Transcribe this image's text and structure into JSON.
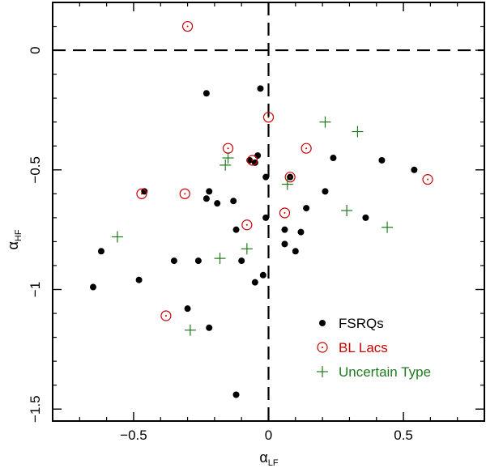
{
  "chart_data": {
    "type": "scatter",
    "title": "",
    "xlabel": {
      "main": "α",
      "sub": "LF"
    },
    "ylabel": {
      "main": "α",
      "sub": "HF"
    },
    "xlim": [
      -0.8,
      0.8
    ],
    "ylim": [
      -1.55,
      0.2
    ],
    "x_ticks": [
      -0.5,
      0,
      0.5
    ],
    "x_tick_labels": [
      "−0.5",
      "0",
      "0.5"
    ],
    "y_ticks": [
      -1.5,
      -1,
      -0.5,
      0
    ],
    "y_tick_labels": [
      "−1.5",
      "−1",
      "−0.5",
      "0"
    ],
    "reference_lines": {
      "x": 0,
      "y": 0,
      "style": "dashed"
    },
    "legend_position": "bottom-right",
    "colors": {
      "fsrq": "#000000",
      "bllac": "#cc0000",
      "uncertain": "#1f7a1f"
    },
    "series": [
      {
        "name": "FSRQs",
        "marker": "dot",
        "points": [
          [
            -0.23,
            -0.18
          ],
          [
            -0.03,
            -0.16
          ],
          [
            -0.07,
            -0.46
          ],
          [
            -0.04,
            -0.44
          ],
          [
            -0.05,
            -0.47
          ],
          [
            -0.01,
            -0.53
          ],
          [
            0.08,
            -0.53
          ],
          [
            0.24,
            -0.45
          ],
          [
            0.42,
            -0.46
          ],
          [
            0.54,
            -0.5
          ],
          [
            -0.46,
            -0.59
          ],
          [
            -0.22,
            -0.59
          ],
          [
            -0.23,
            -0.62
          ],
          [
            -0.19,
            -0.64
          ],
          [
            -0.13,
            -0.63
          ],
          [
            0.21,
            -0.59
          ],
          [
            -0.12,
            -0.75
          ],
          [
            -0.01,
            -0.7
          ],
          [
            0.14,
            -0.66
          ],
          [
            0.06,
            -0.75
          ],
          [
            0.12,
            -0.76
          ],
          [
            0.36,
            -0.7
          ],
          [
            -0.62,
            -0.84
          ],
          [
            -0.35,
            -0.88
          ],
          [
            -0.26,
            -0.88
          ],
          [
            -0.1,
            -0.88
          ],
          [
            0.06,
            -0.81
          ],
          [
            0.1,
            -0.84
          ],
          [
            -0.05,
            -0.97
          ],
          [
            -0.02,
            -0.94
          ],
          [
            -0.65,
            -0.99
          ],
          [
            -0.48,
            -0.96
          ],
          [
            -0.3,
            -1.08
          ],
          [
            -0.22,
            -1.16
          ],
          [
            -0.12,
            -1.44
          ]
        ]
      },
      {
        "name": "BL Lacs",
        "marker": "circle-dot",
        "points": [
          [
            -0.3,
            0.1
          ],
          [
            -0.15,
            -0.41
          ],
          [
            -0.06,
            -0.46
          ],
          [
            0.0,
            -0.28
          ],
          [
            0.14,
            -0.41
          ],
          [
            0.08,
            -0.53
          ],
          [
            -0.47,
            -0.6
          ],
          [
            -0.31,
            -0.6
          ],
          [
            -0.08,
            -0.73
          ],
          [
            0.06,
            -0.68
          ],
          [
            0.59,
            -0.54
          ],
          [
            -0.38,
            -1.11
          ]
        ]
      },
      {
        "name": "Uncertain Type",
        "marker": "plus",
        "points": [
          [
            0.21,
            -0.3
          ],
          [
            0.33,
            -0.34
          ],
          [
            -0.16,
            -0.48
          ],
          [
            -0.15,
            -0.45
          ],
          [
            0.07,
            -0.56
          ],
          [
            0.29,
            -0.67
          ],
          [
            0.44,
            -0.74
          ],
          [
            -0.56,
            -0.78
          ],
          [
            -0.18,
            -0.87
          ],
          [
            -0.08,
            -0.83
          ],
          [
            -0.29,
            -1.17
          ]
        ]
      }
    ]
  }
}
